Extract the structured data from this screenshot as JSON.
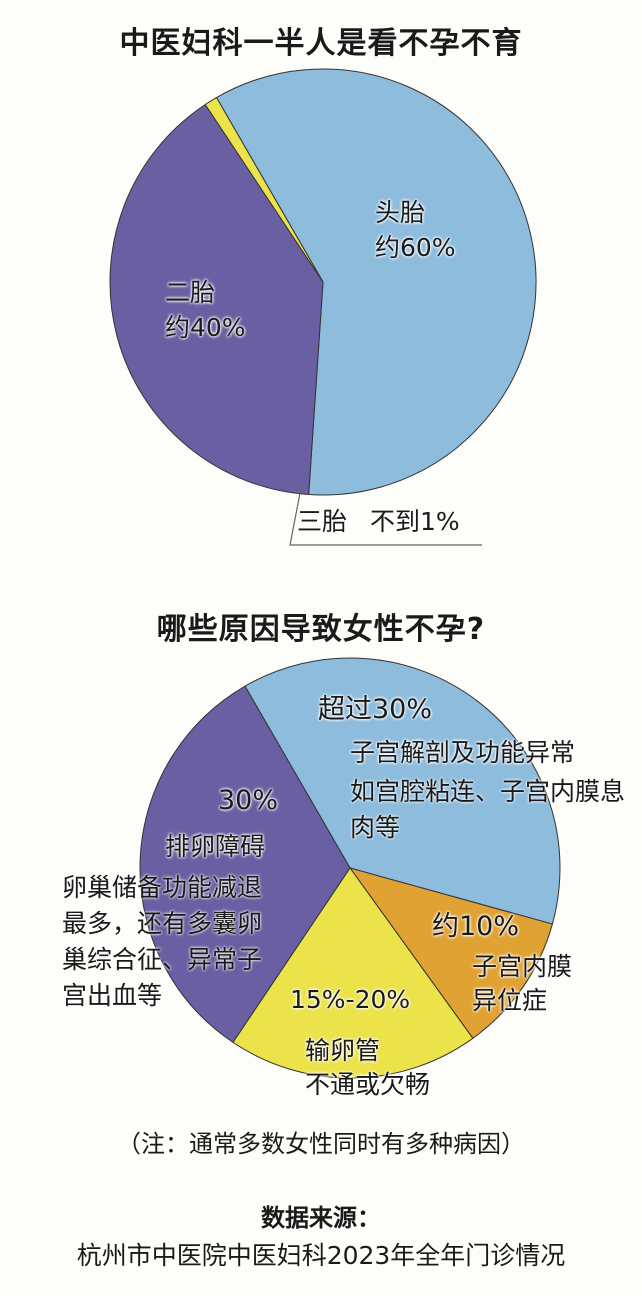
{
  "chart_data": [
    {
      "type": "pie",
      "title": "中医妇科一半人是看不孕不育",
      "categories": [
        "头胎",
        "二胎",
        "三胎"
      ],
      "values": [
        60,
        40,
        1
      ],
      "value_labels": [
        "约60%",
        "约40%",
        "不到1%"
      ],
      "colors": [
        "#8dbcdd",
        "#6a5fa2",
        "#ece34a"
      ]
    },
    {
      "type": "pie",
      "title": "哪些原因导致女性不孕?",
      "categories": [
        "子宫解剖及功能异常",
        "子宫内膜\n异位症",
        "输卵管\n不通或欠畅",
        "排卵障碍"
      ],
      "values": [
        35,
        10,
        18,
        30
      ],
      "value_labels": [
        "超过30%",
        "约10%",
        "15%-20%",
        "30%"
      ],
      "notes": [
        "如宫腔粘连、子宫内膜息肉等",
        null,
        null,
        "卵巢储备功能减退最多，还有多囊卵巢综合征、异常子宫出血等"
      ],
      "colors": [
        "#8dbcdd",
        "#e0a232",
        "#ece34a",
        "#6a5fa2"
      ]
    }
  ],
  "footnote": "（注：通常多数女性同时有多种病因）",
  "source_label": "数据来源：",
  "source": "杭州市中医院中医妇科2023年全年门诊情况"
}
